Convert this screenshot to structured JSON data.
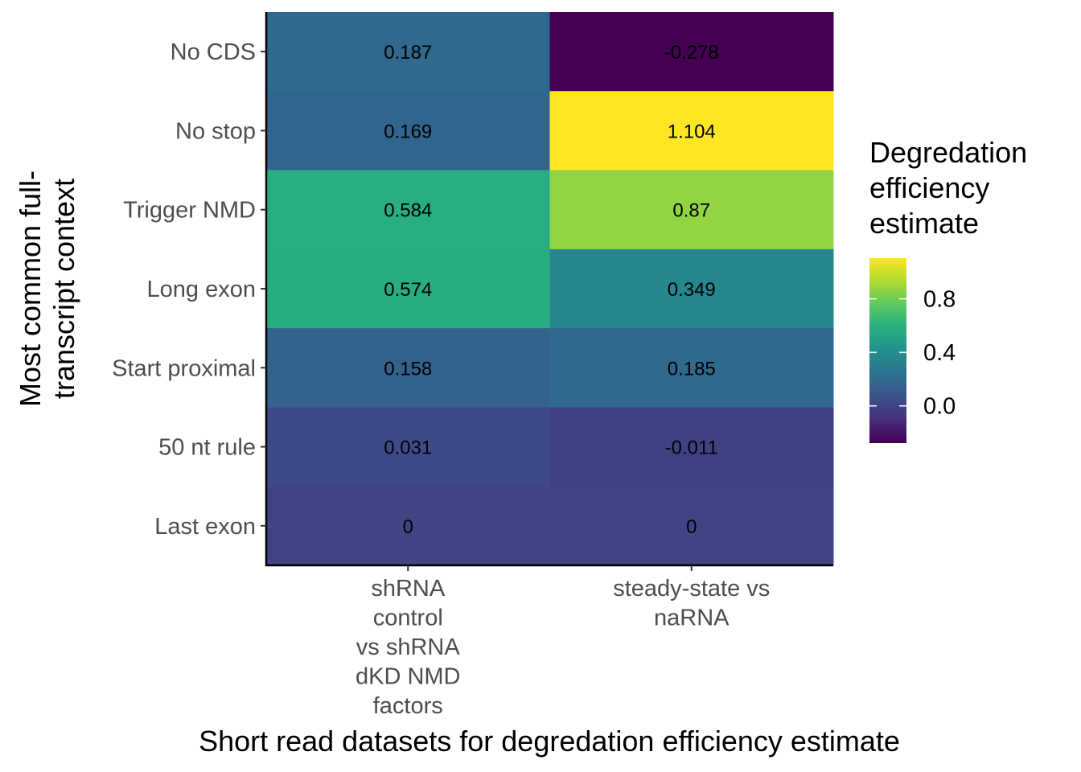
{
  "chart_data": {
    "type": "heatmap",
    "x_categories": [
      [
        "shRNA",
        "control",
        "vs shRNA",
        "dKD NMD",
        "factors"
      ],
      [
        "steady-state vs",
        "naRNA"
      ]
    ],
    "y_categories": [
      "No CDS",
      "No stop",
      "Trigger NMD",
      "Long exon",
      "Start proximal",
      "50 nt rule",
      "Last exon"
    ],
    "values": [
      [
        0.187,
        -0.278
      ],
      [
        0.169,
        1.104
      ],
      [
        0.584,
        0.87
      ],
      [
        0.574,
        0.349
      ],
      [
        0.158,
        0.185
      ],
      [
        0.031,
        -0.011
      ],
      [
        0,
        0
      ]
    ],
    "value_labels": [
      [
        "0.187",
        "-0.278"
      ],
      [
        "0.169",
        "1.104"
      ],
      [
        "0.584",
        "0.87"
      ],
      [
        "0.574",
        "0.349"
      ],
      [
        "0.158",
        "0.185"
      ],
      [
        "0.031",
        "-0.011"
      ],
      [
        "0",
        "0"
      ]
    ],
    "xlabel": "Short read datasets for degredation efficiency estimate",
    "ylabel": [
      "Most common full-",
      "transcript context"
    ],
    "legend": {
      "title": [
        "Degredation",
        "efficiency",
        "estimate"
      ],
      "ticks": [
        {
          "value": 0.8,
          "label": "0.8"
        },
        {
          "value": 0.4,
          "label": "0.4"
        },
        {
          "value": 0.0,
          "label": "0.0"
        }
      ],
      "range": [
        -0.278,
        1.104
      ],
      "placement": "right",
      "colormap": "viridis"
    },
    "grid": false
  }
}
